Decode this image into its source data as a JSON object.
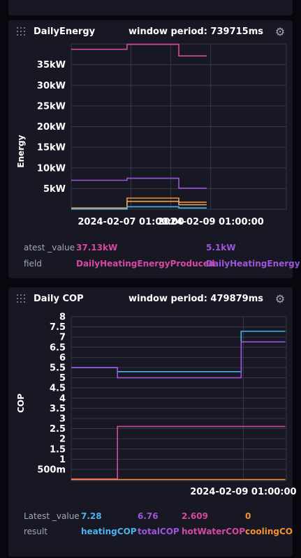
{
  "energy_panel": {
    "title": "DailyEnergy",
    "window_period": "window period: 739715ms",
    "legend": {
      "latest_label": "atest _value",
      "field_label": "field",
      "entries": [
        {
          "value": "37.13kW",
          "field": "DailyHeatingEnergyProduced",
          "color": "#d649a2"
        },
        {
          "value": "5.1kW",
          "field": "DailyHeatingEnergy",
          "color": "#9e55dc"
        }
      ]
    }
  },
  "cop_panel": {
    "title": "Daily COP",
    "window_period": "window period: 479879ms",
    "legend": {
      "latest_label": "Latest _value",
      "field_label": "result",
      "entries": [
        {
          "value": "7.28",
          "field": "heatingCOP",
          "color": "#4cb3ef"
        },
        {
          "value": "6.76",
          "field": "totalCOP",
          "color": "#9e55dc"
        },
        {
          "value": "2.609",
          "field": "hotWaterCOP",
          "color": "#d649a2"
        },
        {
          "value": "0",
          "field": "coolingCO",
          "color": "#f7902e"
        }
      ]
    }
  },
  "chart_data": [
    {
      "type": "line",
      "interpolation": "step",
      "ylabel": "Energy",
      "y_ticks": [
        "5kW",
        "10kW",
        "15kW",
        "20kW",
        "25kW",
        "30kW",
        "35kW"
      ],
      "y_tick_values": [
        5,
        10,
        15,
        20,
        25,
        30,
        35
      ],
      "ylim": [
        0,
        40
      ],
      "x_ticks": [
        {
          "label": "2024-02-07 01:00:00",
          "x": 1.0
        },
        {
          "label": "2024-02-09 01:00:00",
          "x": 3.0
        }
      ],
      "x_grid": [
        1.0,
        2.0,
        3.0
      ],
      "xlim": [
        -0.5,
        4.9
      ],
      "grid": true,
      "series": [
        {
          "color": "#d649a2",
          "points": [
            [
              -0.5,
              38.7
            ],
            [
              0.9,
              38.7
            ],
            [
              0.9,
              39.9
            ],
            [
              2.2,
              39.9
            ],
            [
              2.2,
              37.1
            ],
            [
              2.9,
              37.1
            ]
          ]
        },
        {
          "color": "#9e55dc",
          "points": [
            [
              -0.5,
              7.0
            ],
            [
              0.9,
              7.0
            ],
            [
              0.9,
              7.5
            ],
            [
              2.2,
              7.5
            ],
            [
              2.2,
              5.1
            ],
            [
              2.9,
              5.1
            ]
          ]
        },
        {
          "color": "#f7902e",
          "points": [
            [
              -0.5,
              0.3
            ],
            [
              0.9,
              0.3
            ],
            [
              0.9,
              2.7
            ],
            [
              2.2,
              2.7
            ],
            [
              2.2,
              1.7
            ],
            [
              2.9,
              1.7
            ]
          ]
        },
        {
          "color": "#e6a65b",
          "points": [
            [
              -0.5,
              0.1
            ],
            [
              0.9,
              0.1
            ],
            [
              0.9,
              1.9
            ],
            [
              2.2,
              1.9
            ],
            [
              2.2,
              1.1
            ],
            [
              2.9,
              1.1
            ]
          ]
        },
        {
          "color": "#4cb3ef",
          "points": [
            [
              -0.5,
              0.05
            ],
            [
              0.9,
              0.05
            ],
            [
              0.9,
              0.6
            ],
            [
              2.2,
              0.6
            ],
            [
              2.2,
              0.3
            ],
            [
              2.9,
              0.3
            ]
          ]
        }
      ]
    },
    {
      "type": "line",
      "interpolation": "step",
      "ylabel": "COP",
      "y_ticks": [
        "500m",
        "1",
        "1.5",
        "2",
        "2.5",
        "3",
        "3.5",
        "4",
        "4.5",
        "5",
        "5.5",
        "6",
        "6.5",
        "7",
        "7.5",
        "8"
      ],
      "y_tick_values": [
        0.5,
        1,
        1.5,
        2,
        2.5,
        3,
        3.5,
        4,
        4.5,
        5,
        5.5,
        6,
        6.5,
        7,
        7.5,
        8
      ],
      "ylim": [
        -0.05,
        8
      ],
      "x_ticks": [
        {
          "label": "2024-02-09 01:00:00",
          "x": 1.0
        }
      ],
      "x_grid": [
        1.0
      ],
      "xlim": [
        -0.6,
        1.4
      ],
      "grid": true,
      "series": [
        {
          "color": "#4cb3ef",
          "points": [
            [
              -0.6,
              5.5
            ],
            [
              -0.17,
              5.5
            ],
            [
              -0.17,
              5.3
            ],
            [
              0.98,
              5.3
            ],
            [
              0.98,
              7.28
            ],
            [
              1.39,
              7.28
            ]
          ]
        },
        {
          "color": "#9e55dc",
          "points": [
            [
              -0.6,
              5.5
            ],
            [
              -0.17,
              5.5
            ],
            [
              -0.17,
              5.0
            ],
            [
              0.98,
              5.0
            ],
            [
              0.98,
              6.76
            ],
            [
              1.39,
              6.76
            ]
          ]
        },
        {
          "color": "#d649a2",
          "points": [
            [
              -0.6,
              0.03
            ],
            [
              -0.17,
              0.03
            ],
            [
              -0.17,
              2.609
            ],
            [
              1.39,
              2.609
            ]
          ]
        },
        {
          "color": "#f7902e",
          "points": [
            [
              -0.6,
              0.0
            ],
            [
              1.39,
              0.0
            ]
          ]
        }
      ]
    }
  ]
}
